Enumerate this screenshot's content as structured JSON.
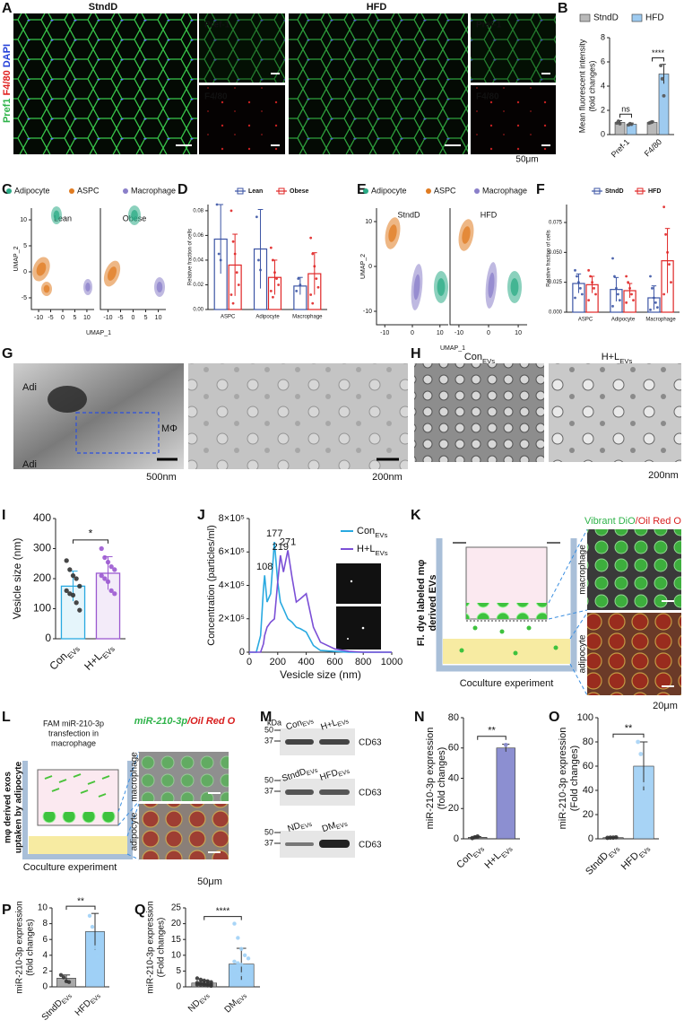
{
  "panels": {
    "letters": [
      "A",
      "B",
      "C",
      "D",
      "E",
      "F",
      "G",
      "H",
      "I",
      "J",
      "K",
      "L",
      "M",
      "N",
      "O",
      "P",
      "Q"
    ],
    "A": {
      "groups": [
        "StndD",
        "HFD"
      ],
      "stain": [
        {
          "text": "Pref1",
          "color": "#2fb34a"
        },
        {
          "text": " F4/80",
          "color": "#e0201f"
        },
        {
          "text": " DAPI",
          "color": "#2340d8"
        }
      ],
      "insets": [
        {
          "text": "Pref-1",
          "color": "#39c24f"
        },
        {
          "text": "F4/80",
          "color": "#e8302c"
        },
        {
          "text": "Pref-1",
          "color": "#39c24f"
        },
        {
          "text": "F4/80",
          "color": "#e8302c"
        }
      ],
      "scale": "50μm"
    },
    "C": {
      "legend": [
        {
          "name": "Adipocyte",
          "color": "#2bab86"
        },
        {
          "name": "ASPC",
          "color": "#e07b21"
        },
        {
          "name": "Macrophage",
          "color": "#8a7fc9"
        }
      ],
      "groups": [
        "Lean",
        "Obese"
      ],
      "x_label": "UMAP_1",
      "y_label": "UMAP_2",
      "xticks": [
        -10,
        -5,
        0,
        5,
        10
      ],
      "yticks": [
        -5,
        0,
        5,
        10
      ]
    },
    "E": {
      "legend": [
        {
          "name": "Adipocyte",
          "color": "#2bab86"
        },
        {
          "name": "ASPC",
          "color": "#e07b21"
        },
        {
          "name": "Macrophage",
          "color": "#8a7fc9"
        }
      ],
      "groups": [
        "StndD",
        "HFD"
      ],
      "x_label": "UMAP_1",
      "y_label": "UMAP_2",
      "xticks": [
        -10,
        0,
        10
      ],
      "yticks": [
        -10,
        0,
        10
      ]
    },
    "G": {
      "labels": [
        "Adi",
        "MΦ",
        "Adi"
      ],
      "scales": [
        "500nm",
        "200nm"
      ]
    },
    "H": {
      "titles": [
        {
          "text": "Con",
          "sub": "EVs"
        },
        {
          "text": "H+L",
          "sub": "EVs"
        }
      ],
      "scale": "200nm"
    },
    "K": {
      "stain": [
        {
          "text": "Vibrant DiO",
          "color": "#2fb34a"
        },
        {
          "text": "/Oil Red O",
          "color": "#d81e1e"
        }
      ],
      "side_label": [
        "Fl. dye labeled mφ",
        "derived EVs"
      ],
      "cells": [
        "macrophage",
        "adipocyte"
      ],
      "footer": "Coculture experiment",
      "scale": "20μm"
    },
    "L": {
      "top_label": [
        "FAM miR-210-3p",
        "transfection in",
        "macrophage"
      ],
      "stain": [
        {
          "text": "miR-210-3p",
          "color": "#2fb34a"
        },
        {
          "text": "/Oil Red O",
          "color": "#d81e1e"
        }
      ],
      "side_label": [
        "mφ derived exos",
        "uptaken by adipocyte"
      ],
      "cells": [
        "macrophage",
        "adipocyte"
      ],
      "footer": "Coculture experiment",
      "scale": "50μm"
    },
    "M": {
      "unit": "kDa",
      "blots": [
        {
          "markers": [
            50,
            37
          ],
          "lanes": [
            {
              "text": "Con",
              "sub": "EVs"
            },
            {
              "text": "H+L",
              "sub": "EVs"
            }
          ],
          "protein": "CD63"
        },
        {
          "markers": [
            50,
            37
          ],
          "lanes": [
            {
              "text": "StndD",
              "sub": "EVs"
            },
            {
              "text": "HFD",
              "sub": "EVs"
            }
          ],
          "protein": "CD63"
        },
        {
          "markers": [
            50,
            37
          ],
          "lanes": [
            {
              "text": "ND",
              "sub": "EVs"
            },
            {
              "text": "DM",
              "sub": "EVs"
            }
          ],
          "protein": "CD63"
        }
      ]
    }
  },
  "chart_data": [
    {
      "type": "bar",
      "categories": [
        "Pref-1",
        "F4/80"
      ],
      "y_label": [
        "Mean fluorescent intensity",
        "(fold changes)"
      ],
      "ylim": [
        0,
        8
      ],
      "yticks": [
        0,
        2,
        4,
        6,
        8
      ],
      "x_label_rotation": 45,
      "significance": [
        "ns",
        "****"
      ],
      "series": [
        {
          "name": "StndD",
          "color": "#b9b9b9",
          "values": [
            1.0,
            1.0
          ],
          "errors": [
            0.15,
            0.1
          ],
          "points": [
            [
              0.95,
              1.1,
              0.9
            ],
            [
              0.95,
              1.0,
              1.05
            ]
          ]
        },
        {
          "name": "HFD",
          "color": "#9ecbf0",
          "values": [
            0.85,
            5.0
          ],
          "errors": [
            0.1,
            0.8
          ],
          "points": [
            [
              0.8,
              0.9,
              0.85
            ],
            [
              5.7,
              4.6,
              3.2
            ]
          ]
        }
      ]
    },
    {
      "type": "bar",
      "bar_style": "outline",
      "categories": [
        "ASPC",
        "Adipocyte",
        "Macrophage"
      ],
      "y_label": "Relative fraction of cells",
      "ylim": [
        0,
        0.085
      ],
      "yticks": [
        {
          "value": 0,
          "label": "0.00"
        },
        {
          "value": 0.02,
          "label": "0.02"
        },
        {
          "value": 0.04,
          "label": "0.04"
        },
        {
          "value": 0.06,
          "label": "0.06"
        },
        {
          "value": 0.08,
          "label": "0.08"
        }
      ],
      "x_label_rotation": 0,
      "series": [
        {
          "name": "Lean",
          "color": "#3c55a5",
          "values": [
            0.057,
            0.049,
            0.019
          ],
          "errors": [
            0.028,
            0.032,
            0.007
          ],
          "points": [
            [
              0.085,
              0.045,
              0.04
            ],
            [
              0.075,
              0.04,
              0.032
            ],
            [
              0.015,
              0.025,
              0.02
            ]
          ]
        },
        {
          "name": "Obese",
          "color": "#e02626",
          "values": [
            0.036,
            0.026,
            0.029
          ],
          "errors": [
            0.025,
            0.014,
            0.017
          ],
          "points": [
            [
              0.08,
              0.055,
              0.045,
              0.03,
              0.02,
              0.012,
              0.005
            ],
            [
              0.05,
              0.04,
              0.03,
              0.025,
              0.02,
              0.015,
              0.01
            ],
            [
              0.058,
              0.045,
              0.035,
              0.025,
              0.018,
              0.012,
              0.005
            ]
          ]
        }
      ]
    },
    {
      "type": "bar",
      "bar_style": "outline",
      "categories": [
        "ASPC",
        "Adipocyte",
        "Macrophage"
      ],
      "y_label": "Relative fraction of cells",
      "ylim": [
        0,
        0.09
      ],
      "yticks": [
        {
          "value": 0,
          "label": "0.000"
        },
        {
          "value": 0.025,
          "label": "0.025"
        },
        {
          "value": 0.05,
          "label": "0.050"
        },
        {
          "value": 0.075,
          "label": "0.075"
        }
      ],
      "x_label_rotation": 0,
      "series": [
        {
          "name": "StndD",
          "color": "#3c55a5",
          "values": [
            0.024,
            0.019,
            0.012
          ],
          "errors": [
            0.008,
            0.01,
            0.01
          ],
          "points": [
            [
              0.035,
              0.03,
              0.025,
              0.02,
              0.015,
              0.012
            ],
            [
              0.045,
              0.03,
              0.02,
              0.015,
              0.01,
              0.005
            ],
            [
              0.03,
              0.02,
              0.012,
              0.008,
              0.004,
              0.002
            ]
          ]
        },
        {
          "name": "HFD",
          "color": "#e02626",
          "values": [
            0.023,
            0.018,
            0.043
          ],
          "errors": [
            0.007,
            0.006,
            0.027
          ],
          "points": [
            [
              0.035,
              0.03,
              0.025,
              0.02,
              0.015,
              0.01
            ],
            [
              0.03,
              0.025,
              0.02,
              0.015,
              0.01,
              0.008
            ],
            [
              0.088,
              0.065,
              0.05,
              0.04,
              0.025,
              0.015
            ]
          ]
        }
      ]
    },
    {
      "type": "bar",
      "bar_style": "tinted",
      "categories": [
        {
          "text": "Con",
          "sub": "EVs"
        },
        {
          "text": "H+L",
          "sub": "EVs"
        }
      ],
      "y_label": "Vesicle size (nm)",
      "ylim": [
        0,
        400
      ],
      "yticks": [
        0,
        100,
        200,
        300,
        400
      ],
      "x_label_rotation": 45,
      "significance": "*",
      "series": [
        {
          "colors": [
            "#29a9e0",
            "#9b59d0"
          ],
          "values": [
            175,
            218
          ],
          "errors": [
            50,
            55
          ],
          "points": [
            [
              260,
              230,
              210,
              200,
              175,
              160,
              150,
              145,
              120,
              95
            ],
            [
              300,
              270,
              255,
              240,
              230,
              210,
              200,
              190,
              160,
              150
            ]
          ]
        }
      ]
    },
    {
      "type": "line",
      "x": [
        0,
        50,
        80,
        100,
        108,
        125,
        150,
        177,
        200,
        219,
        240,
        271,
        300,
        330,
        360,
        400,
        450,
        500,
        600,
        700,
        800,
        900,
        1000
      ],
      "x_label": "Vesicle size (nm)",
      "y_label": "Concentration (particles/ml)",
      "xlim": [
        0,
        1000
      ],
      "xticks": [
        0,
        200,
        400,
        600,
        800,
        1000
      ],
      "ylim": [
        0,
        800000
      ],
      "yticks": [
        0,
        {
          "value": 200000,
          "label": "2×10⁵"
        },
        {
          "value": 400000,
          "label": "4×10⁵"
        },
        {
          "value": 600000,
          "label": "6×10⁵"
        },
        {
          "value": 800000,
          "label": "8×10⁵"
        }
      ],
      "series": [
        {
          "name": {
            "text": "Con",
            "sub": "EVs"
          },
          "color": "#29a9e0",
          "peaks": [
            108,
            177
          ],
          "values": [
            0,
            0,
            100000,
            380000,
            460000,
            300000,
            350000,
            660000,
            420000,
            300000,
            260000,
            200000,
            180000,
            150000,
            140000,
            120000,
            40000,
            10000,
            5000,
            0,
            0,
            0,
            0
          ]
        },
        {
          "name": {
            "text": "H+L",
            "sub": "EVs"
          },
          "color": "#7b4fd6",
          "peaks": [
            219,
            271
          ],
          "values": [
            0,
            0,
            0,
            50000,
            100000,
            150000,
            180000,
            200000,
            420000,
            580000,
            480000,
            610000,
            450000,
            300000,
            320000,
            350000,
            150000,
            60000,
            20000,
            5000,
            0,
            0,
            0
          ]
        }
      ]
    },
    {
      "type": "bar",
      "categories": [
        {
          "text": "Con",
          "sub": "EVs"
        },
        {
          "text": "H+L",
          "sub": "EVs"
        }
      ],
      "y_label": [
        "miR-210-3p expression",
        "(fold changes)"
      ],
      "ylim": [
        0,
        80
      ],
      "yticks": [
        0,
        20,
        40,
        60,
        80
      ],
      "x_label_rotation": 45,
      "significance": "**",
      "series": [
        {
          "colors": [
            "#8a8a8a",
            "#8c8fd1"
          ],
          "values": [
            1,
            60
          ],
          "errors": [
            0.5,
            2.5
          ],
          "points": [
            [
              0.5,
              1,
              1.5
            ],
            [
              57,
              58,
              62
            ]
          ]
        }
      ]
    },
    {
      "type": "bar",
      "categories": [
        {
          "text": "StndD",
          "sub": "EVs"
        },
        {
          "text": "HFD",
          "sub": "EVs"
        }
      ],
      "y_label": [
        "miR-210-3p expression",
        "(Fold changes)"
      ],
      "ylim": [
        0,
        100
      ],
      "yticks": [
        0,
        20,
        40,
        60,
        80,
        100
      ],
      "x_label_rotation": 45,
      "significance": "**",
      "series": [
        {
          "colors": [
            "#8a8a8a",
            "#a7d3f5"
          ],
          "values": [
            1,
            60
          ],
          "errors": [
            0.3,
            20
          ],
          "points": [
            [
              0.8,
              1,
              1,
              1.2
            ],
            [
              80,
              70,
              45,
              34
            ]
          ]
        }
      ]
    },
    {
      "type": "bar",
      "categories": [
        {
          "text": "StndD",
          "sub": "EVs"
        },
        {
          "text": "HFD",
          "sub": "EVs"
        }
      ],
      "y_label": [
        "miR-210-3p expression",
        "(fold changes)"
      ],
      "ylim": [
        0,
        10
      ],
      "yticks": [
        0,
        2,
        4,
        6,
        8,
        10
      ],
      "x_label_rotation": 45,
      "significance": "**",
      "series": [
        {
          "colors": [
            "#a9a9a9",
            "#9fd0f6"
          ],
          "values": [
            1.1,
            7
          ],
          "errors": [
            0.4,
            2.3
          ],
          "points": [
            [
              1.5,
              1.2,
              0.7,
              0.6
            ],
            [
              9,
              7.6,
              5,
              3.8
            ]
          ]
        }
      ]
    },
    {
      "type": "bar",
      "categories": [
        {
          "text": "ND",
          "sub": "EVs"
        },
        {
          "text": "DM",
          "sub": "EVs"
        }
      ],
      "y_label": [
        "miR-210-3p expression",
        "(Fold changes)"
      ],
      "ylim": [
        0,
        25
      ],
      "yticks": [
        0,
        5,
        10,
        15,
        20,
        25
      ],
      "x_label_rotation": 45,
      "significance": "****",
      "series": [
        {
          "colors": [
            "#a9a9a9",
            "#9fd0f6"
          ],
          "values": [
            1.2,
            7.2
          ],
          "errors": [
            0.6,
            5
          ],
          "points": [
            [
              2.7,
              2.3,
              2.0,
              1.8,
              1.5,
              1.3,
              1.2,
              1.0,
              0.9,
              0.8,
              0.7,
              0.6,
              0.5,
              0.4,
              0.3
            ],
            [
              20,
              15.5,
              12,
              10,
              9,
              8,
              7.5,
              7,
              6.5,
              6,
              5,
              4.5,
              4,
              3,
              2
            ]
          ]
        }
      ]
    }
  ]
}
